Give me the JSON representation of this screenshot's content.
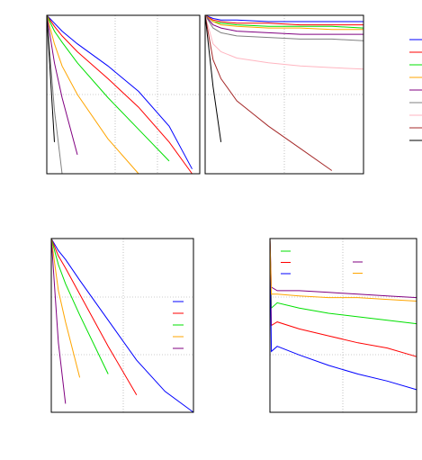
{
  "chart_data": [
    {
      "type": "line",
      "x": [
        0,
        0.05,
        0.1,
        0.2,
        0.4,
        0.6,
        0.8,
        0.95
      ],
      "xlim": [
        0,
        1
      ],
      "ylim": [
        0,
        1
      ],
      "series": [
        {
          "color": "#0000ff",
          "values": [
            1,
            0.95,
            0.9,
            0.82,
            0.68,
            0.52,
            0.3,
            0.03
          ]
        },
        {
          "color": "#ff0000",
          "values": [
            1,
            0.93,
            0.87,
            0.77,
            0.6,
            0.42,
            0.2,
            0
          ]
        },
        {
          "color": "#00e000",
          "values": [
            1,
            0.9,
            0.83,
            0.7,
            0.48,
            0.28,
            0.08,
            null
          ]
        },
        {
          "color": "#ffa500",
          "values": [
            1,
            0.82,
            0.68,
            0.5,
            0.22,
            0,
            null,
            null
          ]
        },
        {
          "color": "#800080",
          "values": [
            1,
            0.7,
            0.48,
            0.12,
            null,
            null,
            null,
            null
          ]
        },
        {
          "color": "#808080",
          "values": [
            1,
            0.4,
            0,
            null,
            null,
            null,
            null,
            null
          ]
        },
        {
          "color": "#000000",
          "values": [
            1,
            0.2,
            null,
            null,
            null,
            null,
            null,
            null
          ]
        }
      ]
    },
    {
      "type": "line",
      "x": [
        0,
        0.05,
        0.1,
        0.2,
        0.4,
        0.6,
        0.8,
        1
      ],
      "xlim": [
        0,
        1
      ],
      "ylim": [
        0,
        1
      ],
      "legend": "outside-right",
      "series": [
        {
          "color": "#0000ff",
          "values": [
            1,
            0.98,
            0.97,
            0.97,
            0.96,
            0.96,
            0.96,
            0.96
          ]
        },
        {
          "color": "#ff0000",
          "values": [
            1,
            0.97,
            0.96,
            0.95,
            0.95,
            0.94,
            0.94,
            0.94
          ]
        },
        {
          "color": "#00e000",
          "values": [
            1,
            0.96,
            0.95,
            0.94,
            0.93,
            0.93,
            0.93,
            0.92
          ]
        },
        {
          "color": "#ffa500",
          "values": [
            1,
            0.96,
            0.94,
            0.93,
            0.92,
            0.92,
            0.91,
            0.91
          ]
        },
        {
          "color": "#800080",
          "values": [
            1,
            0.94,
            0.92,
            0.9,
            0.89,
            0.88,
            0.88,
            0.88
          ]
        },
        {
          "color": "#808080",
          "values": [
            1,
            0.92,
            0.89,
            0.87,
            0.86,
            0.85,
            0.85,
            0.84
          ]
        },
        {
          "color": "#ffb6c1",
          "values": [
            1,
            0.82,
            0.77,
            0.73,
            0.7,
            0.68,
            0.67,
            0.66
          ]
        },
        {
          "color": "#a52a2a",
          "values": [
            1,
            0.72,
            0.6,
            0.46,
            0.3,
            0.16,
            0.02,
            null
          ]
        },
        {
          "color": "#000000",
          "values": [
            1,
            0.55,
            0.2,
            null,
            null,
            null,
            null,
            null
          ]
        }
      ]
    },
    {
      "type": "line",
      "x": [
        0,
        0.05,
        0.1,
        0.2,
        0.4,
        0.6,
        0.8,
        1
      ],
      "xlim": [
        0,
        1
      ],
      "ylim": [
        0,
        1
      ],
      "legend": "center-right",
      "series": [
        {
          "color": "#0000ff",
          "values": [
            1,
            0.93,
            0.88,
            0.76,
            0.53,
            0.3,
            0.12,
            0
          ]
        },
        {
          "color": "#ff0000",
          "values": [
            1,
            0.9,
            0.83,
            0.68,
            0.38,
            0.1,
            null,
            null
          ]
        },
        {
          "color": "#00e000",
          "values": [
            1,
            0.85,
            0.74,
            0.56,
            0.22,
            null,
            null,
            null
          ]
        },
        {
          "color": "#ffa500",
          "values": [
            1,
            0.7,
            0.52,
            0.2,
            null,
            null,
            null,
            null
          ]
        },
        {
          "color": "#800080",
          "values": [
            1,
            0.4,
            0.05,
            null,
            null,
            null,
            null,
            null
          ]
        }
      ]
    },
    {
      "type": "line",
      "x": [
        0,
        0.01,
        0.05,
        0.2,
        0.4,
        0.6,
        0.8,
        1
      ],
      "xlim": [
        0,
        1
      ],
      "ylim": [
        0,
        1
      ],
      "legend": "upper-left",
      "series": [
        {
          "color": "#00e000",
          "values": [
            1,
            0.6,
            0.63,
            0.6,
            0.57,
            0.55,
            0.53,
            0.51
          ]
        },
        {
          "color": "#ff0000",
          "values": [
            1,
            0.5,
            0.52,
            0.48,
            0.44,
            0.4,
            0.37,
            0.32
          ]
        },
        {
          "color": "#0000ff",
          "values": [
            1,
            0.35,
            0.38,
            0.33,
            0.27,
            0.22,
            0.18,
            0.13
          ]
        },
        {
          "color": "#800080",
          "values": [
            1,
            0.72,
            0.7,
            0.7,
            0.69,
            0.68,
            0.67,
            0.66
          ]
        },
        {
          "color": "#ffa500",
          "values": [
            1,
            0.68,
            0.68,
            0.67,
            0.66,
            0.66,
            0.65,
            0.64
          ]
        }
      ]
    }
  ]
}
